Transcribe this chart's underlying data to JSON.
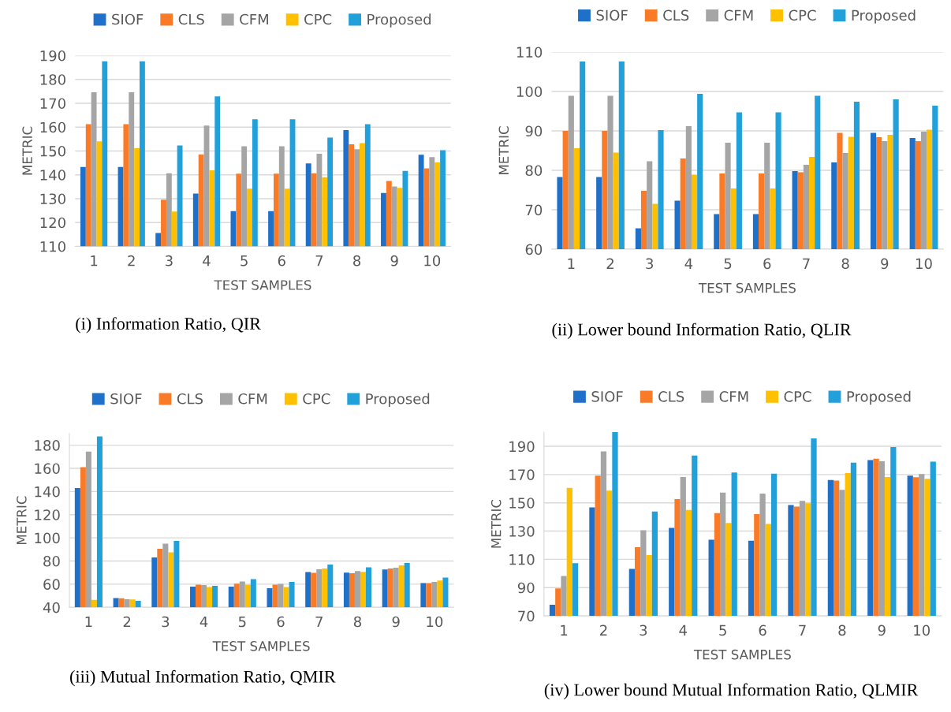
{
  "chart_data": [
    {
      "type": "bar",
      "title": "(i) Information Ratio, QIR",
      "xlabel": "TEST SAMPLES",
      "ylabel": "METRIC",
      "categories": [
        "1",
        "2",
        "3",
        "4",
        "5",
        "6",
        "7",
        "8",
        "9",
        "10"
      ],
      "ylim": [
        110,
        190
      ],
      "yticks": [
        110,
        120,
        130,
        140,
        150,
        160,
        170,
        180,
        190
      ],
      "grid": "y",
      "legend": "top",
      "series": [
        {
          "name": "SIOF",
          "color": "#1f70c8",
          "values": [
            143.3,
            143.3,
            115.6,
            132.1,
            124.8,
            124.8,
            144.8,
            158.7,
            132.4,
            148.4
          ]
        },
        {
          "name": "CLS",
          "color": "#f97b28",
          "values": [
            161.2,
            161.2,
            129.6,
            148.5,
            140.5,
            140.5,
            140.6,
            152.8,
            137.4,
            142.7
          ]
        },
        {
          "name": "CFM",
          "color": "#a5a5a5",
          "values": [
            174.6,
            174.6,
            140.6,
            160.6,
            152.0,
            152.0,
            148.8,
            150.7,
            135.1,
            147.4
          ]
        },
        {
          "name": "CPC",
          "color": "#ffc000",
          "values": [
            154.0,
            151.1,
            124.6,
            141.9,
            134.2,
            134.2,
            139.0,
            153.3,
            134.5,
            145.2
          ]
        },
        {
          "name": "Proposed",
          "color": "#22a0da",
          "values": [
            187.6,
            187.6,
            152.3,
            172.9,
            163.3,
            163.3,
            155.6,
            161.2,
            141.6,
            150.3
          ]
        }
      ]
    },
    {
      "type": "bar",
      "title": "(ii) Lower bound Information Ratio, QLIR",
      "xlabel": "TEST SAMPLES",
      "ylabel": "METRIC",
      "categories": [
        "1",
        "2",
        "3",
        "4",
        "5",
        "6",
        "7",
        "8",
        "9",
        "10"
      ],
      "ylim": [
        60,
        110
      ],
      "yticks": [
        60,
        70,
        80,
        90,
        100,
        110
      ],
      "grid": "y",
      "legend": "top",
      "series": [
        {
          "name": "SIOF",
          "color": "#1f70c8",
          "values": [
            78.3,
            78.3,
            65.3,
            72.3,
            68.9,
            68.9,
            79.8,
            82.0,
            89.5,
            88.2
          ]
        },
        {
          "name": "CLS",
          "color": "#f97b28",
          "values": [
            90.0,
            90.0,
            74.8,
            83.0,
            79.2,
            79.2,
            79.5,
            89.5,
            88.4,
            87.4
          ]
        },
        {
          "name": "CFM",
          "color": "#a5a5a5",
          "values": [
            98.9,
            98.9,
            82.3,
            91.2,
            87.0,
            87.0,
            81.4,
            84.4,
            87.4,
            89.8
          ]
        },
        {
          "name": "CPC",
          "color": "#ffc000",
          "values": [
            85.6,
            84.5,
            71.5,
            78.9,
            75.4,
            75.4,
            83.4,
            88.5,
            89.0,
            90.3
          ]
        },
        {
          "name": "Proposed",
          "color": "#22a0da",
          "values": [
            107.6,
            107.6,
            90.2,
            99.4,
            94.7,
            94.7,
            98.9,
            97.4,
            98.0,
            96.4
          ]
        }
      ]
    },
    {
      "type": "bar",
      "title": "(iii) Mutual Information Ratio, QMIR",
      "xlabel": "TEST SAMPLES",
      "ylabel": "METRIC",
      "categories": [
        "1",
        "2",
        "3",
        "4",
        "5",
        "6",
        "7",
        "8",
        "9",
        "10"
      ],
      "ylim": [
        40,
        190
      ],
      "yticks": [
        40,
        60,
        80,
        100,
        120,
        140,
        160,
        180
      ],
      "grid": "y",
      "legend": "top",
      "series": [
        {
          "name": "SIOF",
          "color": "#1f70c8",
          "values": [
            143.0,
            48.0,
            83.0,
            57.8,
            57.8,
            56.5,
            70.5,
            70.0,
            72.7,
            61.0
          ]
        },
        {
          "name": "CLS",
          "color": "#f97b28",
          "values": [
            161.0,
            47.8,
            90.5,
            59.5,
            60.5,
            59.5,
            69.8,
            69.5,
            73.5,
            61.0
          ]
        },
        {
          "name": "CFM",
          "color": "#a5a5a5",
          "values": [
            174.5,
            47.0,
            95.0,
            59.2,
            62.3,
            60.3,
            72.8,
            71.3,
            74.3,
            62.0
          ]
        },
        {
          "name": "CPC",
          "color": "#ffc000",
          "values": [
            46.5,
            46.8,
            87.5,
            57.5,
            59.6,
            57.5,
            73.5,
            70.6,
            76.3,
            63.2
          ]
        },
        {
          "name": "Proposed",
          "color": "#22a0da",
          "values": [
            187.5,
            45.7,
            97.3,
            58.5,
            64.3,
            62.0,
            77.0,
            74.5,
            78.3,
            65.7
          ]
        }
      ]
    },
    {
      "type": "bar",
      "title": "(iv) Lower bound Mutual Information Ratio, QLMIR",
      "xlabel": "TEST SAMPLES",
      "ylabel": "METRIC",
      "categories": [
        "1",
        "2",
        "3",
        "4",
        "5",
        "6",
        "7",
        "8",
        "9",
        "10"
      ],
      "ylim": [
        70,
        200
      ],
      "yticks": [
        70,
        90,
        110,
        130,
        150,
        170,
        190
      ],
      "grid": "y",
      "legend": "top",
      "series": [
        {
          "name": "SIOF",
          "color": "#1f70c8",
          "values": [
            77.9,
            146.8,
            103.3,
            132.3,
            123.9,
            123.2,
            148.5,
            166.1,
            180.3,
            169.2
          ]
        },
        {
          "name": "CLS",
          "color": "#f97b28",
          "values": [
            89.5,
            169.2,
            118.6,
            152.7,
            142.8,
            142.1,
            147.3,
            165.7,
            181.3,
            168.1
          ]
        },
        {
          "name": "CFM",
          "color": "#a5a5a5",
          "values": [
            98.3,
            186.4,
            130.6,
            168.3,
            157.2,
            156.5,
            151.4,
            159.2,
            179.4,
            170.3
          ]
        },
        {
          "name": "CPC",
          "color": "#ffc000",
          "values": [
            160.6,
            158.7,
            113.0,
            144.9,
            135.7,
            135.0,
            149.7,
            171.0,
            168.2,
            167.0
          ]
        },
        {
          "name": "Proposed",
          "color": "#22a0da",
          "values": [
            107.3,
            200.0,
            143.9,
            183.5,
            171.5,
            170.6,
            195.6,
            178.5,
            189.4,
            179.2
          ]
        }
      ]
    }
  ]
}
